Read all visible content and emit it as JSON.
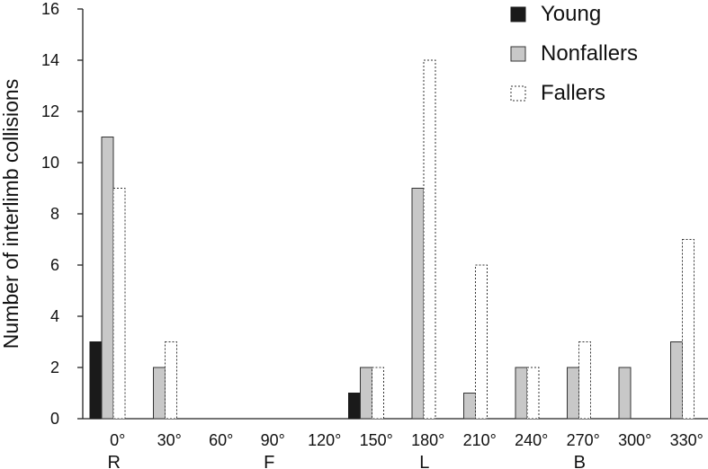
{
  "chart_data": {
    "type": "bar",
    "title": "",
    "xlabel": "",
    "ylabel": "Number of interlimb collisions",
    "ylim": [
      0,
      16
    ],
    "yticks": [
      0,
      2,
      4,
      6,
      8,
      10,
      12,
      14,
      16
    ],
    "grid": false,
    "legend_position": "top-right",
    "categories": [
      "0°",
      "30°",
      "60°",
      "90°",
      "120°",
      "150°",
      "180°",
      "210°",
      "240°",
      "270°",
      "300°",
      "330°"
    ],
    "direction_labels": [
      {
        "label": "R",
        "category_index": 0
      },
      {
        "label": "F",
        "category_index": 3
      },
      {
        "label": "L",
        "category_index": 6
      },
      {
        "label": "B",
        "category_index": 9
      }
    ],
    "series": [
      {
        "name": "Young",
        "style": "solid-black",
        "fill": "#1a1a1a",
        "stroke": "#1a1a1a",
        "values": [
          3,
          0,
          0,
          0,
          0,
          1,
          0,
          0,
          0,
          0,
          0,
          0
        ]
      },
      {
        "name": "Nonfallers",
        "style": "solid-gray",
        "fill": "#c8c8c8",
        "stroke": "#333333",
        "values": [
          11,
          2,
          0,
          0,
          0,
          2,
          9,
          1,
          2,
          2,
          2,
          3
        ]
      },
      {
        "name": "Fallers",
        "style": "dotted-outline",
        "fill": "#ffffff",
        "stroke": "#333333",
        "values": [
          9,
          3,
          0,
          0,
          0,
          2,
          14,
          6,
          2,
          3,
          0,
          7
        ]
      }
    ]
  }
}
